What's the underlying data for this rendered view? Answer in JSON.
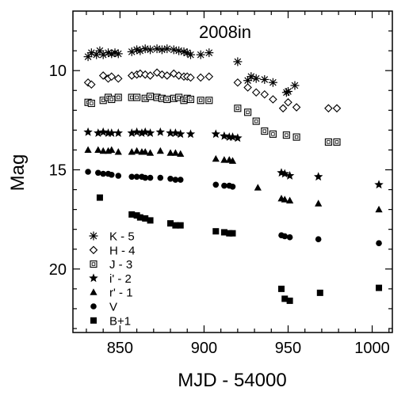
{
  "chart_data": {
    "type": "scatter",
    "title": "2008in",
    "xlabel": "MJD - 54000",
    "ylabel": "Mag",
    "xlim": [
      822,
      1012
    ],
    "ylim": [
      23.2,
      7.0
    ],
    "y_inverted": true,
    "x_ticks": [
      850,
      900,
      950,
      1000
    ],
    "y_ticks": [
      10,
      15,
      20
    ],
    "grid": false,
    "legend_position": "bottom-left",
    "series": [
      {
        "name": "K - 5",
        "marker": "asterisk",
        "x": [
          831,
          833,
          836,
          838,
          840,
          843,
          845,
          847,
          849,
          857,
          860,
          862,
          865,
          868,
          872,
          875,
          878,
          882,
          885,
          888,
          890,
          892,
          898,
          903,
          920,
          926,
          928,
          931,
          936,
          941,
          949,
          950,
          954
        ],
        "y": [
          9.3,
          9.1,
          9.2,
          9.0,
          9.2,
          9.1,
          9.15,
          9.1,
          9.15,
          9.05,
          8.95,
          9.0,
          8.9,
          8.95,
          8.9,
          8.95,
          8.9,
          8.95,
          9.0,
          9.05,
          9.1,
          9.2,
          9.2,
          9.1,
          9.55,
          10.5,
          10.3,
          10.4,
          10.45,
          10.6,
          11.1,
          11.05,
          10.75
        ]
      },
      {
        "name": "H - 4",
        "marker": "diamond",
        "x": [
          831,
          833,
          840,
          843,
          845,
          849,
          857,
          860,
          862,
          865,
          868,
          872,
          875,
          878,
          882,
          885,
          888,
          890,
          892,
          898,
          903,
          920,
          926,
          931,
          936,
          941,
          947,
          950,
          955,
          974,
          979
        ],
        "y": [
          10.6,
          10.7,
          10.25,
          10.4,
          10.3,
          10.4,
          10.25,
          10.2,
          10.15,
          10.2,
          10.25,
          10.1,
          10.2,
          10.25,
          10.15,
          10.25,
          10.3,
          10.3,
          10.35,
          10.35,
          10.3,
          10.6,
          10.85,
          11.1,
          11.2,
          11.45,
          11.9,
          11.6,
          11.85,
          11.9,
          11.9
        ]
      },
      {
        "name": "J - 3",
        "marker": "square-open",
        "x": [
          831,
          833,
          840,
          843,
          845,
          849,
          857,
          860,
          865,
          868,
          872,
          875,
          878,
          882,
          885,
          888,
          890,
          892,
          898,
          903,
          920,
          926,
          931,
          936,
          941,
          949,
          955,
          974,
          979
        ],
        "y": [
          11.6,
          11.65,
          11.5,
          11.35,
          11.45,
          11.35,
          11.35,
          11.35,
          11.4,
          11.3,
          11.35,
          11.4,
          11.45,
          11.4,
          11.35,
          11.5,
          11.4,
          11.45,
          11.5,
          11.5,
          11.9,
          12.1,
          12.55,
          13.05,
          13.2,
          13.25,
          13.35,
          13.6,
          13.6
        ]
      },
      {
        "name": "i' - 2",
        "marker": "star",
        "x": [
          831,
          837,
          840,
          843,
          845,
          849,
          857,
          860,
          863,
          865,
          868,
          874,
          880,
          883,
          886,
          892,
          907,
          912,
          915,
          917,
          920,
          946,
          948,
          951,
          968,
          1004
        ],
        "y": [
          13.1,
          13.15,
          13.1,
          13.15,
          13.15,
          13.15,
          13.15,
          13.1,
          13.15,
          13.1,
          13.15,
          13.1,
          13.15,
          13.15,
          13.2,
          13.2,
          13.2,
          13.3,
          13.35,
          13.35,
          13.4,
          15.15,
          15.2,
          15.3,
          15.35,
          15.75
        ]
      },
      {
        "name": "r' - 1",
        "marker": "triangle",
        "x": [
          831,
          837,
          840,
          843,
          845,
          849,
          857,
          860,
          863,
          865,
          868,
          874,
          880,
          883,
          886,
          907,
          912,
          915,
          917,
          932,
          946,
          948,
          951,
          968,
          1004
        ],
        "y": [
          14.0,
          14.0,
          14.05,
          14.05,
          14.0,
          14.1,
          14.1,
          14.05,
          14.1,
          14.1,
          14.15,
          14.05,
          14.15,
          14.15,
          14.2,
          14.45,
          14.5,
          14.5,
          14.55,
          15.9,
          16.45,
          16.5,
          16.55,
          16.7,
          17.0
        ]
      },
      {
        "name": "V",
        "marker": "circle",
        "x": [
          831,
          837,
          840,
          843,
          845,
          849,
          857,
          860,
          863,
          865,
          868,
          874,
          880,
          883,
          886,
          907,
          912,
          915,
          917,
          946,
          948,
          951,
          968,
          1004
        ],
        "y": [
          15.1,
          15.15,
          15.2,
          15.2,
          15.25,
          15.3,
          15.35,
          15.35,
          15.35,
          15.4,
          15.4,
          15.4,
          15.45,
          15.5,
          15.5,
          15.75,
          15.8,
          15.8,
          15.85,
          18.3,
          18.35,
          18.4,
          18.5,
          18.7
        ]
      },
      {
        "name": "B+1",
        "marker": "square",
        "x": [
          838,
          857,
          860,
          862,
          865,
          868,
          880,
          883,
          886,
          907,
          912,
          915,
          917,
          946,
          948,
          951,
          969,
          1004
        ],
        "y": [
          16.4,
          17.25,
          17.3,
          17.4,
          17.45,
          17.55,
          17.7,
          17.8,
          17.8,
          18.1,
          18.15,
          18.2,
          18.2,
          21.0,
          21.5,
          21.6,
          21.2,
          20.95
        ]
      }
    ]
  }
}
